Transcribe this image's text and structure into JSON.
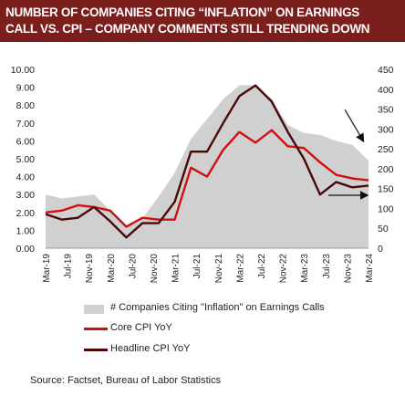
{
  "title": {
    "line1": "NUMBER OF COMPANIES CITING “INFLATION” ON EARNINGS",
    "line2": "CALL VS. CPI – COMPANY COMMENTS STILL TRENDING DOWN"
  },
  "colors": {
    "title_band": "#7b1f1d",
    "area": "#d0d0d0",
    "core": "#d01010",
    "headline": "#4a0808"
  },
  "legend": {
    "area": "# Companies Citing \"Inflation\" on Earnings Calls",
    "core": "Core CPI YoY",
    "headline": "Headline CPI YoY"
  },
  "source": "Source:  Factset,  Bureau of Labor Statistics",
  "chart_data": {
    "type": "line",
    "x_ticks": [
      "Mar-19",
      "Jul-19",
      "Nov-19",
      "Mar-20",
      "Jul-20",
      "Nov-20",
      "Mar-21",
      "Jul-21",
      "Nov-21",
      "Mar-22",
      "Jul-22",
      "Nov-22",
      "Mar-23",
      "Jul-23",
      "Nov-23",
      "Mar-24"
    ],
    "x_range": [
      "2019-03",
      "2024-03"
    ],
    "y_left": {
      "ticks": [
        "0.00",
        "1.00",
        "2.00",
        "3.00",
        "4.00",
        "5.00",
        "6.00",
        "7.00",
        "8.00",
        "9.00",
        "10.00"
      ],
      "range": [
        0,
        10
      ]
    },
    "y_right": {
      "ticks": [
        "0",
        "50",
        "100",
        "150",
        "200",
        "250",
        "300",
        "350",
        "400",
        "450"
      ],
      "range": [
        0,
        450
      ]
    },
    "grid": false,
    "legend_position": "bottom",
    "series": [
      {
        "name": "# Companies Citing \"Inflation\" on Earnings Calls",
        "kind": "area",
        "axis": "right",
        "points": [
          [
            "2019-03",
            135
          ],
          [
            "2019-06",
            125
          ],
          [
            "2019-09",
            130
          ],
          [
            "2019-12",
            135
          ],
          [
            "2020-03",
            95
          ],
          [
            "2020-06",
            55
          ],
          [
            "2020-09",
            75
          ],
          [
            "2020-12",
            130
          ],
          [
            "2021-03",
            190
          ],
          [
            "2021-06",
            275
          ],
          [
            "2021-09",
            325
          ],
          [
            "2021-12",
            375
          ],
          [
            "2022-03",
            410
          ],
          [
            "2022-06",
            410
          ],
          [
            "2022-09",
            375
          ],
          [
            "2022-12",
            310
          ],
          [
            "2023-03",
            290
          ],
          [
            "2023-06",
            285
          ],
          [
            "2023-09",
            270
          ],
          [
            "2023-12",
            260
          ],
          [
            "2024-03",
            220
          ]
        ]
      },
      {
        "name": "Core CPI YoY",
        "kind": "line",
        "axis": "left",
        "points": [
          [
            "2019-03",
            2.0
          ],
          [
            "2019-06",
            2.1
          ],
          [
            "2019-09",
            2.4
          ],
          [
            "2019-12",
            2.3
          ],
          [
            "2020-03",
            2.1
          ],
          [
            "2020-06",
            1.2
          ],
          [
            "2020-09",
            1.7
          ],
          [
            "2020-12",
            1.6
          ],
          [
            "2021-03",
            1.6
          ],
          [
            "2021-06",
            4.5
          ],
          [
            "2021-09",
            4.0
          ],
          [
            "2021-12",
            5.5
          ],
          [
            "2022-03",
            6.5
          ],
          [
            "2022-06",
            5.9
          ],
          [
            "2022-09",
            6.6
          ],
          [
            "2022-12",
            5.7
          ],
          [
            "2023-03",
            5.6
          ],
          [
            "2023-06",
            4.8
          ],
          [
            "2023-09",
            4.1
          ],
          [
            "2023-12",
            3.9
          ],
          [
            "2024-03",
            3.8
          ]
        ]
      },
      {
        "name": "Headline CPI YoY",
        "kind": "line",
        "axis": "left",
        "points": [
          [
            "2019-03",
            1.9
          ],
          [
            "2019-06",
            1.6
          ],
          [
            "2019-09",
            1.7
          ],
          [
            "2019-12",
            2.3
          ],
          [
            "2020-03",
            1.5
          ],
          [
            "2020-06",
            0.6
          ],
          [
            "2020-09",
            1.4
          ],
          [
            "2020-12",
            1.4
          ],
          [
            "2021-03",
            2.6
          ],
          [
            "2021-06",
            5.4
          ],
          [
            "2021-09",
            5.4
          ],
          [
            "2021-12",
            7.0
          ],
          [
            "2022-03",
            8.5
          ],
          [
            "2022-06",
            9.1
          ],
          [
            "2022-09",
            8.2
          ],
          [
            "2022-12",
            6.5
          ],
          [
            "2023-03",
            5.0
          ],
          [
            "2023-06",
            3.0
          ],
          [
            "2023-09",
            3.7
          ],
          [
            "2023-12",
            3.4
          ],
          [
            "2024-03",
            3.5
          ]
        ]
      }
    ]
  }
}
